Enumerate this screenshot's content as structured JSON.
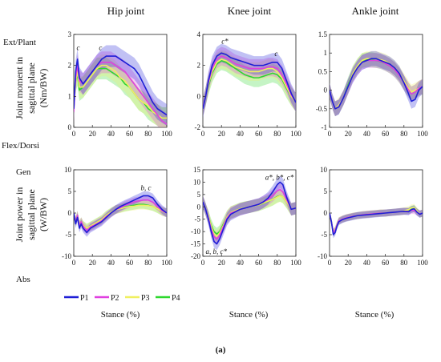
{
  "figure_label": "(a)",
  "row_labels": {
    "moment_top": "Ext/Plant",
    "moment_bottom": "Flex/Dorsi",
    "power_top": "Gen",
    "power_bottom": "Abs"
  },
  "y_labels": {
    "moment": [
      "Joint moment in",
      "sagittal plane",
      "(Nm/BW)"
    ],
    "power": [
      "Joint power in",
      "sagittal plane",
      "(W/BW)"
    ]
  },
  "xlabel": "Stance (%)",
  "legend": [
    "P1",
    "P2",
    "P3",
    "P4"
  ],
  "colors": {
    "P1": "#1f1fd6",
    "P2": "#e040e0",
    "P3": "#f0f060",
    "P4": "#2ed82e"
  },
  "chart_data": [
    {
      "type": "line",
      "title": "Hip joint",
      "panel": "moment-hip",
      "xlim": [
        0,
        100
      ],
      "ylim": [
        0,
        3
      ],
      "xticks": [
        0,
        20,
        40,
        60,
        80,
        100
      ],
      "yticks": [
        0,
        1,
        2,
        3
      ],
      "x": [
        0,
        2,
        4,
        6,
        10,
        15,
        20,
        25,
        30,
        35,
        40,
        45,
        50,
        55,
        60,
        65,
        70,
        75,
        80,
        85,
        90,
        95,
        100
      ],
      "series": [
        {
          "name": "P1",
          "values": [
            0.6,
            1.8,
            2.2,
            1.6,
            1.4,
            1.6,
            1.8,
            2.0,
            2.2,
            2.3,
            2.3,
            2.3,
            2.2,
            2.1,
            2.0,
            1.9,
            1.7,
            1.4,
            1.1,
            0.8,
            0.6,
            0.5,
            0.4
          ]
        },
        {
          "name": "P2",
          "values": [
            0.5,
            1.6,
            2.0,
            1.5,
            1.4,
            1.6,
            1.8,
            2.0,
            2.1,
            2.1,
            2.1,
            2.0,
            1.9,
            1.8,
            1.6,
            1.4,
            1.2,
            1.0,
            0.8,
            0.6,
            0.4,
            0.2,
            0.1
          ]
        },
        {
          "name": "P3",
          "values": [
            0.6,
            1.5,
            1.8,
            1.3,
            1.3,
            1.5,
            1.7,
            1.9,
            2.0,
            2.0,
            1.9,
            1.8,
            1.6,
            1.5,
            1.3,
            1.1,
            0.9,
            0.8,
            0.7,
            0.5,
            0.4,
            0.3,
            0.3
          ]
        },
        {
          "name": "P4",
          "values": [
            0.6,
            1.5,
            1.7,
            1.2,
            1.3,
            1.5,
            1.7,
            1.9,
            1.9,
            1.9,
            1.8,
            1.7,
            1.6,
            1.4,
            1.3,
            1.1,
            0.9,
            0.8,
            0.6,
            0.5,
            0.4,
            0.3,
            0.3
          ]
        }
      ],
      "band": 0.35,
      "annotations": [
        {
          "text": "c",
          "x": 3,
          "y": 2.5
        },
        {
          "text": "c",
          "x": 27,
          "y": 2.5
        }
      ]
    },
    {
      "type": "line",
      "title": "Knee joint",
      "panel": "moment-knee",
      "xlim": [
        0,
        100
      ],
      "ylim": [
        -2,
        4
      ],
      "xticks": [
        0,
        20,
        40,
        60,
        80,
        100
      ],
      "yticks": [
        -2,
        0,
        2,
        4
      ],
      "x": [
        0,
        3,
        6,
        10,
        15,
        20,
        25,
        30,
        35,
        40,
        45,
        50,
        55,
        60,
        65,
        70,
        75,
        80,
        85,
        90,
        95,
        100
      ],
      "series": [
        {
          "name": "P1",
          "values": [
            -0.8,
            0.0,
            1.0,
            2.0,
            2.6,
            2.8,
            2.7,
            2.5,
            2.4,
            2.3,
            2.2,
            2.1,
            2.0,
            2.0,
            2.0,
            2.1,
            2.2,
            2.2,
            1.8,
            1.0,
            0.2,
            -0.4
          ]
        },
        {
          "name": "P2",
          "values": [
            -0.7,
            0.0,
            0.9,
            1.8,
            2.4,
            2.6,
            2.5,
            2.3,
            2.1,
            2.0,
            1.9,
            1.8,
            1.8,
            1.8,
            1.8,
            1.9,
            1.9,
            1.8,
            1.4,
            0.8,
            0.1,
            -0.4
          ]
        },
        {
          "name": "P3",
          "values": [
            -0.7,
            0.0,
            0.8,
            1.6,
            2.2,
            2.4,
            2.3,
            2.1,
            1.9,
            1.8,
            1.7,
            1.6,
            1.6,
            1.6,
            1.7,
            1.8,
            1.8,
            1.6,
            1.2,
            0.6,
            0.0,
            -0.4
          ]
        },
        {
          "name": "P4",
          "values": [
            -0.7,
            0.0,
            0.7,
            1.5,
            2.1,
            2.3,
            2.2,
            2.0,
            1.8,
            1.6,
            1.4,
            1.3,
            1.2,
            1.2,
            1.3,
            1.4,
            1.5,
            1.4,
            1.1,
            0.5,
            0.0,
            -0.4
          ]
        }
      ],
      "band": 0.6,
      "annotations": [
        {
          "text": "c*",
          "x": 20,
          "y": 3.4
        },
        {
          "text": "c",
          "x": 77,
          "y": 2.6
        }
      ]
    },
    {
      "type": "line",
      "title": "Ankle joint",
      "panel": "moment-ankle",
      "xlim": [
        0,
        100
      ],
      "ylim": [
        -1,
        1.5
      ],
      "xticks": [
        0,
        20,
        40,
        60,
        80,
        100
      ],
      "yticks": [
        -1,
        -0.5,
        0,
        0.5,
        1,
        1.5
      ],
      "x": [
        0,
        3,
        6,
        10,
        15,
        20,
        25,
        30,
        35,
        40,
        45,
        50,
        55,
        60,
        65,
        70,
        75,
        80,
        85,
        88,
        92,
        96,
        100
      ],
      "series": [
        {
          "name": "P1",
          "values": [
            0.0,
            -0.3,
            -0.5,
            -0.45,
            -0.2,
            0.1,
            0.4,
            0.6,
            0.75,
            0.8,
            0.85,
            0.85,
            0.8,
            0.75,
            0.7,
            0.6,
            0.45,
            0.2,
            -0.1,
            -0.3,
            -0.25,
            0.0,
            0.1
          ]
        },
        {
          "name": "P2",
          "values": [
            0.0,
            -0.3,
            -0.5,
            -0.45,
            -0.2,
            0.1,
            0.4,
            0.6,
            0.75,
            0.8,
            0.8,
            0.8,
            0.78,
            0.72,
            0.65,
            0.55,
            0.4,
            0.2,
            0.0,
            -0.1,
            -0.05,
            0.05,
            0.1
          ]
        },
        {
          "name": "P3",
          "values": [
            0.0,
            -0.3,
            -0.5,
            -0.4,
            -0.2,
            0.1,
            0.45,
            0.65,
            0.8,
            0.85,
            0.85,
            0.85,
            0.82,
            0.78,
            0.7,
            0.6,
            0.45,
            0.25,
            0.05,
            -0.05,
            0.0,
            0.05,
            0.1
          ]
        },
        {
          "name": "P4",
          "values": [
            0.0,
            -0.3,
            -0.5,
            -0.45,
            -0.2,
            0.15,
            0.45,
            0.65,
            0.8,
            0.82,
            0.82,
            0.8,
            0.77,
            0.72,
            0.65,
            0.55,
            0.4,
            0.2,
            0.0,
            -0.1,
            -0.05,
            0.05,
            0.1
          ]
        }
      ],
      "band": 0.2,
      "annotations": []
    },
    {
      "type": "line",
      "panel": "power-hip",
      "xlim": [
        0,
        100
      ],
      "ylim": [
        -10,
        10
      ],
      "xticks": [
        0,
        20,
        40,
        60,
        80,
        100
      ],
      "yticks": [
        -10,
        -5,
        0,
        5,
        10
      ],
      "x": [
        0,
        2,
        4,
        6,
        8,
        10,
        14,
        18,
        22,
        26,
        30,
        35,
        40,
        45,
        50,
        55,
        60,
        65,
        70,
        75,
        80,
        85,
        90,
        95,
        100
      ],
      "series": [
        {
          "name": "P1",
          "values": [
            0.0,
            -2.5,
            -1.0,
            -3.5,
            -2.5,
            -3.5,
            -4.5,
            -3.5,
            -3.0,
            -2.5,
            -2.0,
            -1.0,
            0.0,
            0.8,
            1.5,
            2.0,
            2.5,
            3.0,
            3.5,
            4.0,
            4.0,
            3.5,
            2.0,
            0.8,
            0.0
          ]
        },
        {
          "name": "P2",
          "values": [
            0.0,
            -2.0,
            -0.5,
            -3.0,
            -2.0,
            -3.0,
            -4.0,
            -3.2,
            -2.8,
            -2.3,
            -1.8,
            -0.8,
            0.0,
            0.8,
            1.2,
            1.8,
            2.2,
            2.6,
            2.8,
            3.0,
            3.0,
            2.5,
            1.5,
            0.5,
            0.0
          ]
        },
        {
          "name": "P3",
          "values": [
            0.0,
            -2.0,
            -0.5,
            -2.8,
            -2.0,
            -2.8,
            -3.5,
            -3.0,
            -2.5,
            -2.0,
            -1.5,
            -0.5,
            0.2,
            0.8,
            1.0,
            1.3,
            1.5,
            1.6,
            1.8,
            1.8,
            1.7,
            1.5,
            1.0,
            0.4,
            0.0
          ]
        },
        {
          "name": "P4",
          "values": [
            0.0,
            -2.0,
            -0.5,
            -2.8,
            -2.0,
            -2.8,
            -3.5,
            -3.0,
            -2.5,
            -2.0,
            -1.5,
            -0.5,
            0.2,
            0.8,
            1.1,
            1.4,
            1.6,
            1.8,
            2.0,
            2.0,
            1.8,
            1.5,
            1.0,
            0.4,
            0.0
          ]
        }
      ],
      "band": 1.0,
      "annotations": [
        {
          "text": "b, c",
          "x": 72,
          "y": 5.3
        }
      ]
    },
    {
      "type": "line",
      "panel": "power-knee",
      "xlim": [
        0,
        100
      ],
      "ylim": [
        -20,
        15
      ],
      "xticks": [
        0,
        20,
        40,
        60,
        80,
        100
      ],
      "yticks": [
        -20,
        -15,
        -10,
        -5,
        0,
        5,
        10,
        15
      ],
      "x": [
        0,
        3,
        6,
        9,
        12,
        15,
        18,
        22,
        26,
        30,
        35,
        40,
        45,
        50,
        55,
        60,
        65,
        70,
        75,
        80,
        83,
        86,
        90,
        95,
        100
      ],
      "series": [
        {
          "name": "P1",
          "values": [
            2.0,
            -1.0,
            -5.0,
            -10.0,
            -14.0,
            -15.0,
            -13.0,
            -9.0,
            -5.0,
            -3.0,
            -2.0,
            -1.0,
            -0.5,
            0.0,
            0.5,
            1.0,
            2.0,
            3.5,
            6.0,
            9.0,
            10.0,
            9.0,
            4.0,
            -1.0,
            -0.5
          ]
        },
        {
          "name": "P2",
          "values": [
            2.0,
            -1.0,
            -4.5,
            -9.0,
            -12.0,
            -13.0,
            -11.5,
            -8.0,
            -4.5,
            -2.5,
            -1.8,
            -1.0,
            -0.5,
            0.0,
            0.5,
            1.0,
            2.0,
            3.0,
            4.5,
            6.5,
            7.0,
            6.0,
            3.0,
            -1.0,
            -0.5
          ]
        },
        {
          "name": "P3",
          "values": [
            2.0,
            -1.0,
            -4.0,
            -8.0,
            -11.0,
            -12.0,
            -10.5,
            -7.5,
            -4.0,
            -2.3,
            -1.5,
            -0.8,
            -0.3,
            0.0,
            0.4,
            0.8,
            1.5,
            2.3,
            3.0,
            4.0,
            4.5,
            4.0,
            2.0,
            -1.0,
            -0.5
          ]
        },
        {
          "name": "P4",
          "values": [
            2.0,
            -1.0,
            -4.0,
            -7.5,
            -10.0,
            -11.0,
            -10.0,
            -7.0,
            -4.0,
            -2.3,
            -1.5,
            -0.8,
            -0.3,
            0.0,
            0.4,
            0.8,
            1.4,
            2.2,
            3.0,
            4.2,
            4.6,
            4.0,
            2.0,
            -1.0,
            -0.5
          ]
        }
      ],
      "band": 2.5,
      "annotations": [
        {
          "text": "a*, b*, c*",
          "x": 67,
          "y": 11.0
        },
        {
          "text": "a, b, c*",
          "x": 3,
          "y": -19.0
        }
      ]
    },
    {
      "type": "line",
      "panel": "power-ankle",
      "xlim": [
        0,
        100
      ],
      "ylim": [
        -10,
        10
      ],
      "xticks": [
        0,
        20,
        40,
        60,
        80,
        100
      ],
      "yticks": [
        -10,
        -5,
        0,
        5,
        10
      ],
      "x": [
        0,
        2,
        4,
        6,
        8,
        10,
        14,
        18,
        22,
        26,
        30,
        35,
        40,
        45,
        50,
        55,
        60,
        65,
        70,
        75,
        80,
        85,
        88,
        91,
        94,
        97,
        100
      ],
      "series": [
        {
          "name": "P1",
          "values": [
            0.0,
            -2.0,
            -5.0,
            -4.5,
            -3.0,
            -2.0,
            -1.5,
            -1.2,
            -1.0,
            -0.8,
            -0.6,
            -0.5,
            -0.4,
            -0.3,
            -0.2,
            -0.1,
            0.0,
            0.1,
            0.2,
            0.3,
            0.4,
            0.3,
            0.8,
            1.0,
            0.2,
            -0.3,
            0.0
          ]
        },
        {
          "name": "P2",
          "values": [
            0.0,
            -2.0,
            -4.5,
            -4.0,
            -2.8,
            -1.8,
            -1.4,
            -1.1,
            -0.9,
            -0.7,
            -0.6,
            -0.4,
            -0.3,
            -0.2,
            -0.1,
            0.0,
            0.0,
            0.1,
            0.2,
            0.3,
            0.4,
            0.4,
            0.6,
            0.6,
            0.2,
            -0.2,
            0.0
          ]
        },
        {
          "name": "P3",
          "values": [
            0.0,
            -2.0,
            -4.5,
            -4.0,
            -2.8,
            -1.8,
            -1.4,
            -1.1,
            -0.9,
            -0.7,
            -0.6,
            -0.4,
            -0.3,
            -0.2,
            -0.1,
            0.0,
            0.0,
            0.1,
            0.2,
            0.3,
            0.5,
            0.8,
            1.2,
            1.3,
            0.5,
            -0.2,
            0.0
          ]
        },
        {
          "name": "P4",
          "values": [
            0.0,
            -2.0,
            -4.5,
            -4.0,
            -2.8,
            -1.8,
            -1.4,
            -1.1,
            -0.9,
            -0.7,
            -0.6,
            -0.4,
            -0.3,
            -0.2,
            -0.1,
            0.0,
            0.0,
            0.1,
            0.2,
            0.3,
            0.4,
            0.5,
            0.9,
            1.0,
            0.3,
            -0.2,
            0.0
          ]
        }
      ],
      "band": 0.8,
      "annotations": []
    }
  ]
}
